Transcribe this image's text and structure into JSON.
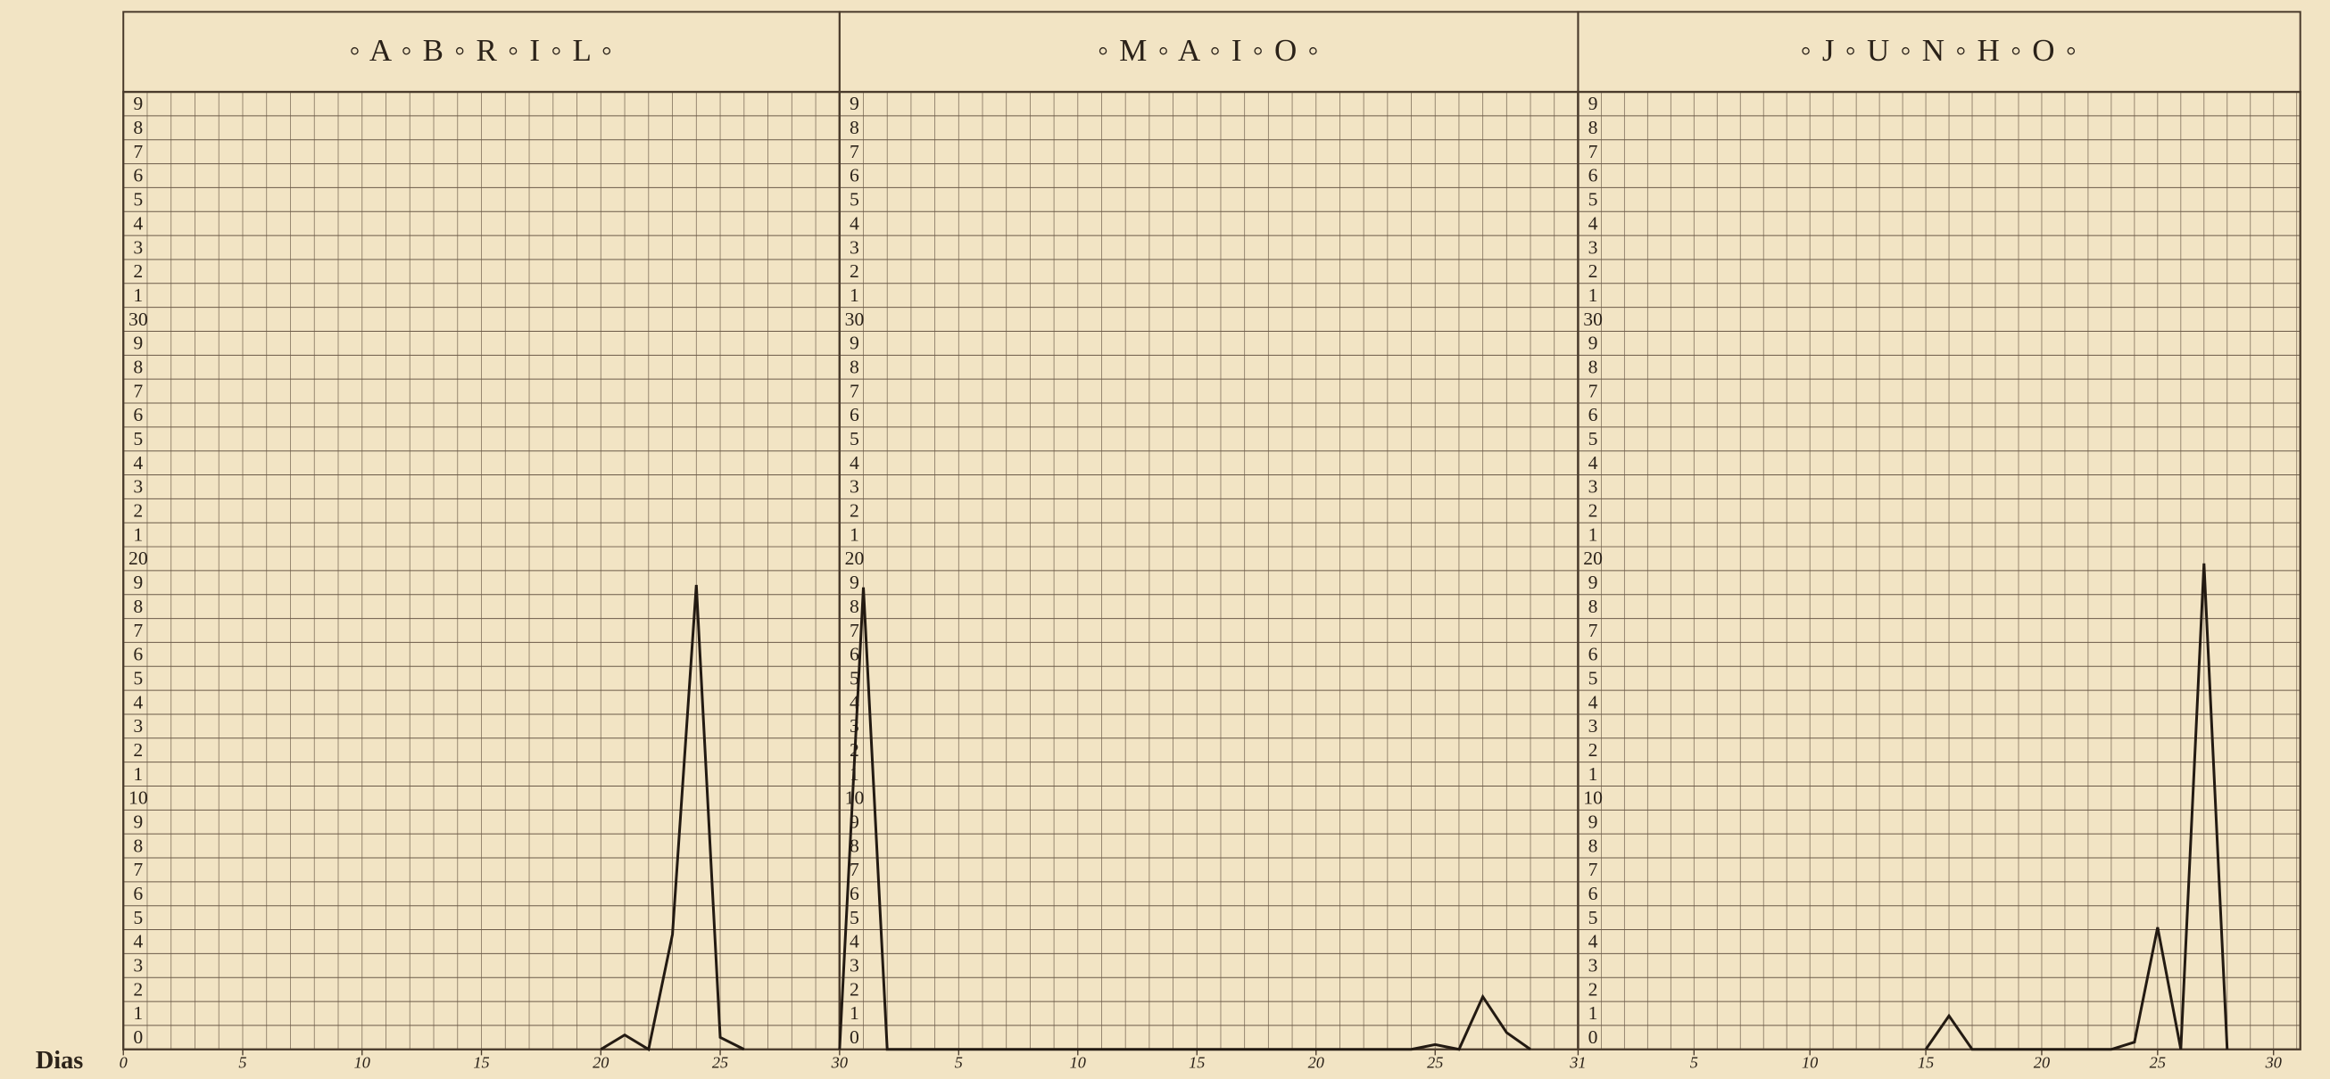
{
  "chart_data": [
    {
      "type": "line",
      "title": "◦ A ◦ B ◦ R ◦ I ◦ L ◦",
      "xlabel": "Dias",
      "x": [
        20,
        21,
        22,
        23,
        24,
        25,
        26
      ],
      "values": [
        0,
        0.6,
        0,
        4.8,
        19.4,
        0.5,
        0
      ],
      "color": "#231a12",
      "xlim": [
        0,
        30
      ],
      "xticks": [
        0,
        5,
        10,
        15,
        20,
        25,
        30
      ],
      "ylim": [
        0,
        40
      ],
      "yticks": [
        0,
        1,
        2,
        3,
        4,
        5,
        6,
        7,
        8,
        9,
        10,
        {
          "value": 11,
          "label": "1"
        },
        {
          "value": 12,
          "label": "2"
        },
        {
          "value": 13,
          "label": "3"
        },
        {
          "value": 14,
          "label": "4"
        },
        {
          "value": 15,
          "label": "5"
        },
        {
          "value": 16,
          "label": "6"
        },
        {
          "value": 17,
          "label": "7"
        },
        {
          "value": 18,
          "label": "8"
        },
        {
          "value": 19,
          "label": "9"
        },
        20,
        {
          "value": 21,
          "label": "1"
        },
        {
          "value": 22,
          "label": "2"
        },
        {
          "value": 23,
          "label": "3"
        },
        {
          "value": 24,
          "label": "4"
        },
        {
          "value": 25,
          "label": "5"
        },
        {
          "value": 26,
          "label": "6"
        },
        {
          "value": 27,
          "label": "7"
        },
        {
          "value": 28,
          "label": "8"
        },
        {
          "value": 29,
          "label": "9"
        },
        30,
        {
          "value": 31,
          "label": "1"
        },
        {
          "value": 32,
          "label": "2"
        },
        {
          "value": 33,
          "label": "3"
        },
        {
          "value": 34,
          "label": "4"
        },
        {
          "value": 35,
          "label": "5"
        },
        {
          "value": 36,
          "label": "6"
        },
        {
          "value": 37,
          "label": "7"
        },
        {
          "value": 38,
          "label": "8"
        },
        {
          "value": 39,
          "label": "9"
        }
      ],
      "grid": true
    },
    {
      "type": "line",
      "title": "◦ M ◦ A ◦ I ◦ O ◦",
      "x": [
        0,
        1,
        2,
        24,
        25,
        26,
        27,
        28,
        29
      ],
      "values": [
        0,
        19.3,
        0,
        0,
        0.2,
        0,
        2.2,
        0.7,
        0
      ],
      "color": "#231a12",
      "xlim": [
        0,
        31
      ],
      "xticks": [
        5,
        10,
        15,
        20,
        25,
        31
      ],
      "ylim": [
        0,
        40
      ],
      "yticks": [
        0,
        1,
        2,
        3,
        4,
        5,
        6,
        7,
        8,
        9,
        10,
        {
          "value": 11,
          "label": "1"
        },
        {
          "value": 12,
          "label": "2"
        },
        {
          "value": 13,
          "label": "3"
        },
        {
          "value": 14,
          "label": "4"
        },
        {
          "value": 15,
          "label": "5"
        },
        {
          "value": 16,
          "label": "6"
        },
        {
          "value": 17,
          "label": "7"
        },
        {
          "value": 18,
          "label": "8"
        },
        {
          "value": 19,
          "label": "9"
        },
        20,
        {
          "value": 21,
          "label": "1"
        },
        {
          "value": 22,
          "label": "2"
        },
        {
          "value": 23,
          "label": "3"
        },
        {
          "value": 24,
          "label": "4"
        },
        {
          "value": 25,
          "label": "5"
        },
        {
          "value": 26,
          "label": "6"
        },
        {
          "value": 27,
          "label": "7"
        },
        {
          "value": 28,
          "label": "8"
        },
        {
          "value": 29,
          "label": "9"
        },
        30,
        {
          "value": 31,
          "label": "1"
        },
        {
          "value": 32,
          "label": "2"
        },
        {
          "value": 33,
          "label": "3"
        },
        {
          "value": 34,
          "label": "4"
        },
        {
          "value": 35,
          "label": "5"
        },
        {
          "value": 36,
          "label": "6"
        },
        {
          "value": 37,
          "label": "7"
        },
        {
          "value": 38,
          "label": "8"
        },
        {
          "value": 39,
          "label": "9"
        }
      ],
      "grid": true
    },
    {
      "type": "line",
      "title": "◦ J ◦ U ◦ N ◦ H ◦ O ◦",
      "x": [
        15,
        16,
        17,
        23,
        24,
        25,
        26,
        27,
        28
      ],
      "values": [
        0,
        1.4,
        0,
        0,
        0.3,
        5.1,
        0,
        20.3,
        0
      ],
      "color": "#231a12",
      "xlim": [
        0,
        30
      ],
      "xticks": [
        5,
        10,
        15,
        20,
        25,
        30
      ],
      "ylim": [
        0,
        40
      ],
      "yticks": [
        0,
        1,
        2,
        3,
        4,
        5,
        6,
        7,
        8,
        9,
        10,
        {
          "value": 11,
          "label": "1"
        },
        {
          "value": 12,
          "label": "2"
        },
        {
          "value": 13,
          "label": "3"
        },
        {
          "value": 14,
          "label": "4"
        },
        {
          "value": 15,
          "label": "5"
        },
        {
          "value": 16,
          "label": "6"
        },
        {
          "value": 17,
          "label": "7"
        },
        {
          "value": 18,
          "label": "8"
        },
        {
          "value": 19,
          "label": "9"
        },
        20,
        {
          "value": 21,
          "label": "1"
        },
        {
          "value": 22,
          "label": "2"
        },
        {
          "value": 23,
          "label": "3"
        },
        {
          "value": 24,
          "label": "4"
        },
        {
          "value": 25,
          "label": "5"
        },
        {
          "value": 26,
          "label": "6"
        },
        {
          "value": 27,
          "label": "7"
        },
        {
          "value": 28,
          "label": "8"
        },
        {
          "value": 29,
          "label": "9"
        },
        30,
        {
          "value": 31,
          "label": "1"
        },
        {
          "value": 32,
          "label": "2"
        },
        {
          "value": 33,
          "label": "3"
        },
        {
          "value": 34,
          "label": "4"
        },
        {
          "value": 35,
          "label": "5"
        },
        {
          "value": 36,
          "label": "6"
        },
        {
          "value": 37,
          "label": "7"
        },
        {
          "value": 38,
          "label": "8"
        },
        {
          "value": 39,
          "label": "9"
        }
      ],
      "grid": true
    }
  ]
}
